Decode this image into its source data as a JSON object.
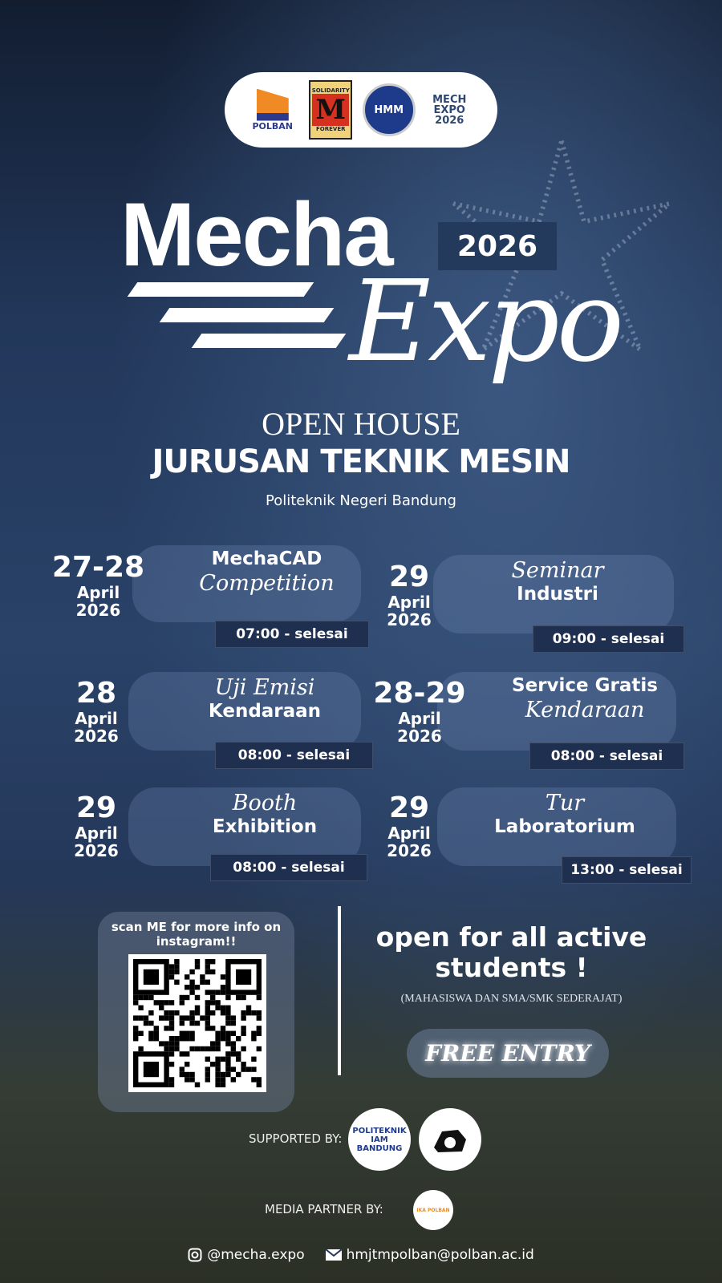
{
  "logos": [
    {
      "name": "POLBAN"
    },
    {
      "top": "SOLIDARITY",
      "letter": "M",
      "bottom": "FOREVER"
    },
    {
      "name": "HMM"
    },
    {
      "name": "MECH EXPO 2026"
    }
  ],
  "title": {
    "mecha": "Mecha",
    "year": "2026",
    "expo": "Expo"
  },
  "subtitle": {
    "open_house": "OPEN HOUSE",
    "department": "JURUSAN TEKNIK MESIN",
    "institution": "Politeknik Negeri Bandung"
  },
  "events": [
    {
      "day": "27-28",
      "month": "April",
      "year": "2026",
      "line1": "MechaCAD",
      "line1_style": "sans",
      "line2": "Competition",
      "line2_style": "serif",
      "time": "07:00 - selesai"
    },
    {
      "day": "29",
      "month": "April",
      "year": "2026",
      "line1": "Seminar",
      "line1_style": "serif",
      "line2": "Industri",
      "line2_style": "sans",
      "time": "09:00 - selesai"
    },
    {
      "day": "28",
      "month": "April",
      "year": "2026",
      "line1": "Uji Emisi",
      "line1_style": "serif",
      "line2": "Kendaraan",
      "line2_style": "sans",
      "time": "08:00 - selesai"
    },
    {
      "day": "28-29",
      "month": "April",
      "year": "2026",
      "line1": "Service Gratis",
      "line1_style": "sans",
      "line2": "Kendaraan",
      "line2_style": "serif",
      "time": "08:00 - selesai"
    },
    {
      "day": "29",
      "month": "April",
      "year": "2026",
      "line1": "Booth",
      "line1_style": "serif",
      "line2": "Exhibition",
      "line2_style": "sans",
      "time": "08:00 - selesai"
    },
    {
      "day": "29",
      "month": "April",
      "year": "2026",
      "line1": "Tur",
      "line1_style": "serif",
      "line2": "Laboratorium",
      "line2_style": "sans",
      "time": "13:00 - selesai"
    }
  ],
  "qr": {
    "caption": "scan ME for more info on instagram!!"
  },
  "audience": {
    "headline": "open for all active students !",
    "note": "(MAHASISWA DAN SMA/SMK SEDERAJAT)",
    "entry": "FREE ENTRY"
  },
  "supported": {
    "label": "SUPPORTED BY:",
    "logos": [
      "POLITEKNIK IAM BANDUNG"
    ]
  },
  "media": {
    "label": "MEDIA PARTNER BY:",
    "logo": "IKA POLBAN"
  },
  "footer": {
    "instagram": "@mecha.expo",
    "email": "hmjtmpolban@polban.ac.id"
  },
  "colors": {
    "background": "#22375a",
    "accent_orange": "#f08a24",
    "badge": "#1f2f4f"
  }
}
